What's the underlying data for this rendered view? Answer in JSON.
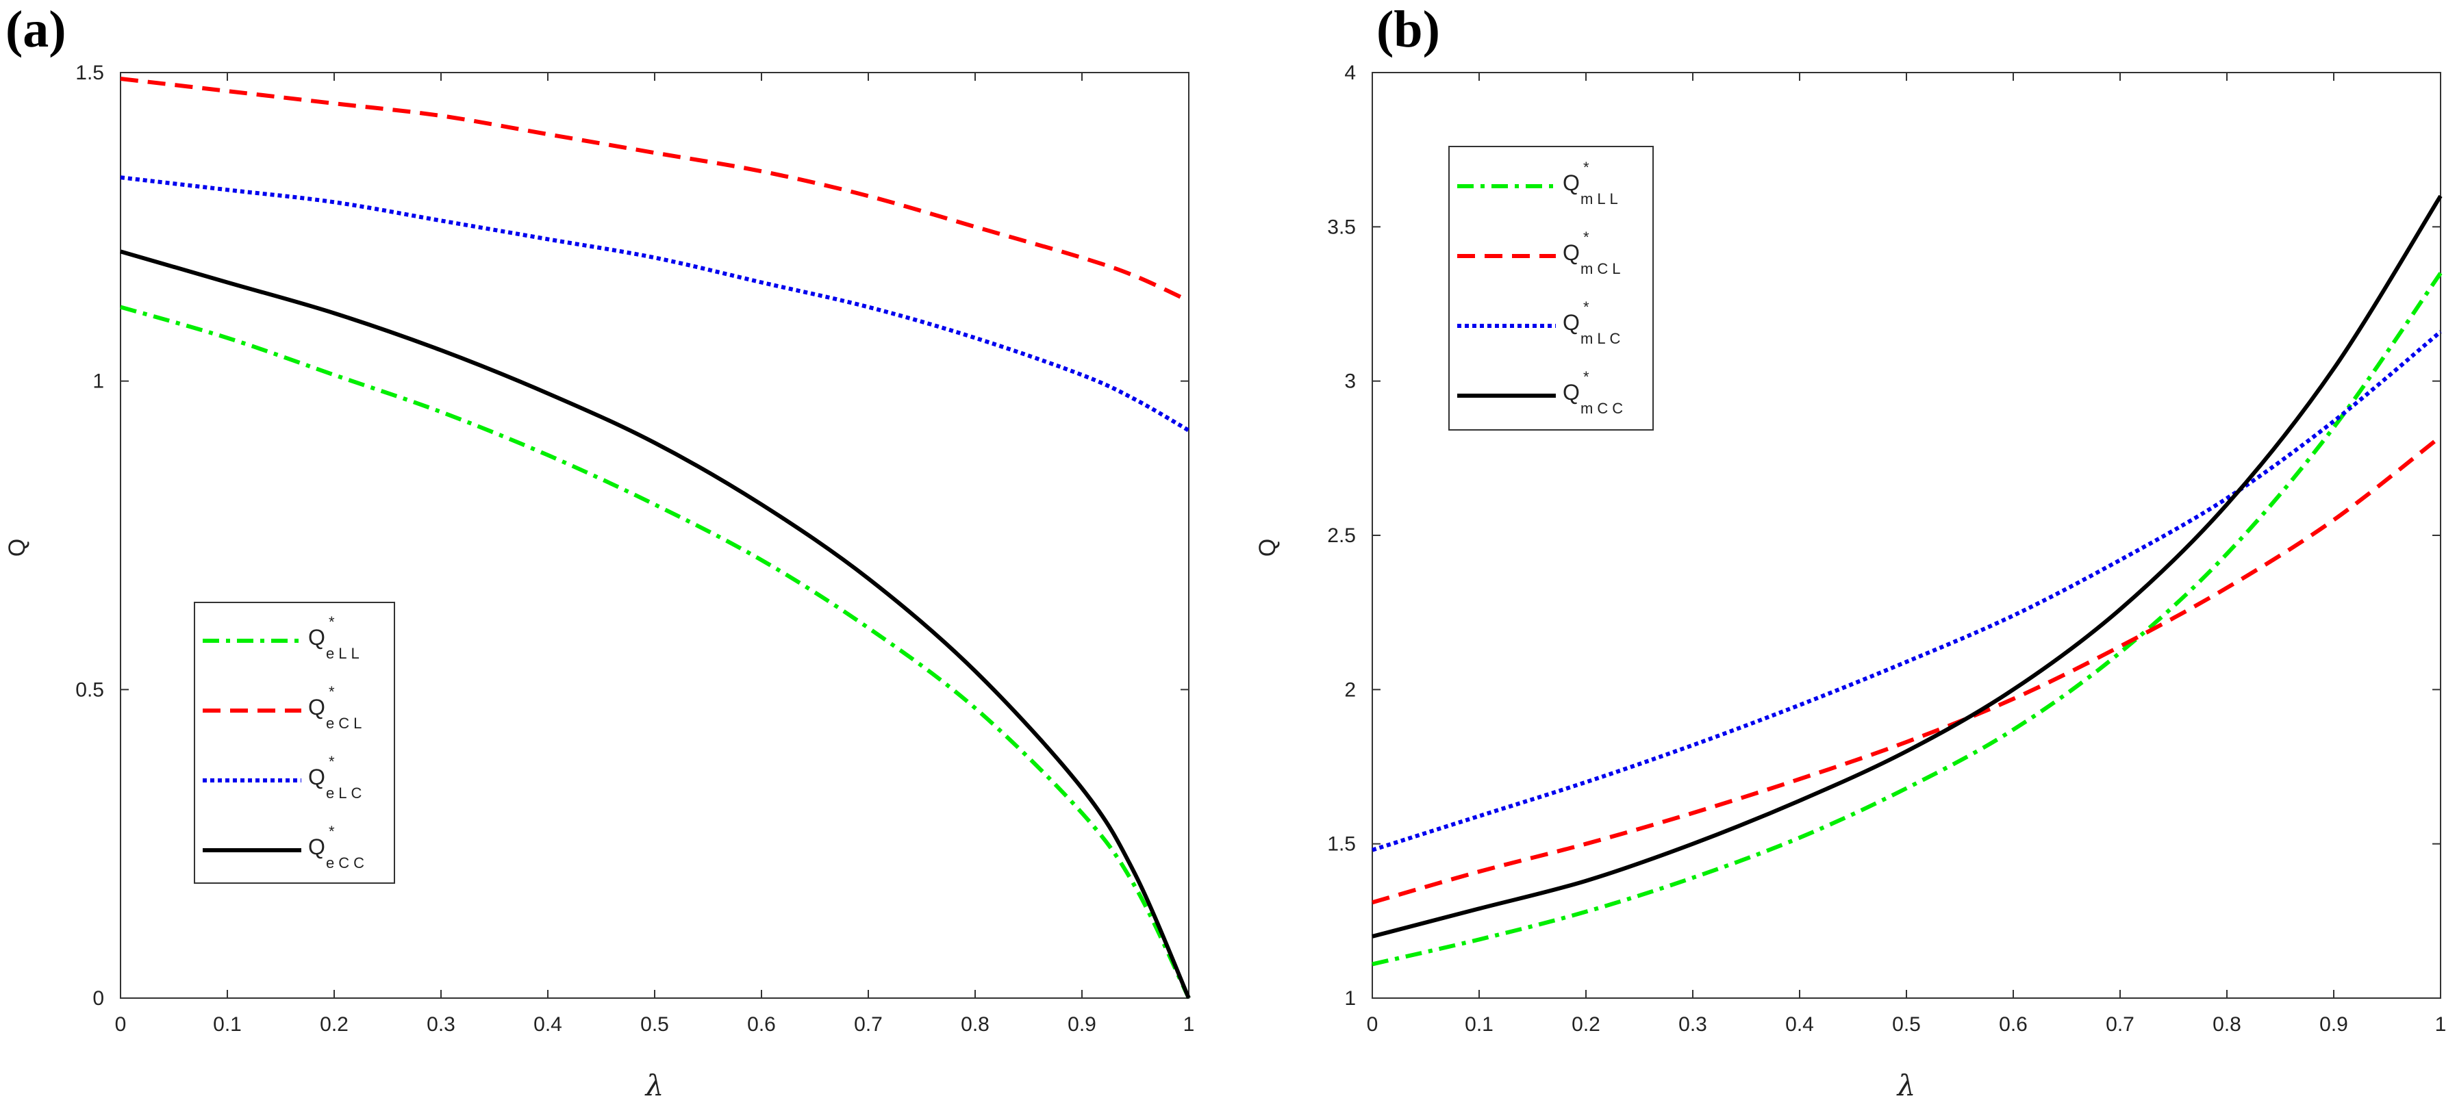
{
  "chart_data": [
    {
      "type": "line",
      "panel_label": "(a)",
      "xlabel": "λ",
      "ylabel": "Q",
      "xlim": [
        0,
        1
      ],
      "ylim": [
        0,
        1.5
      ],
      "xticks": [
        "0",
        "0.1",
        "0.2",
        "0.3",
        "0.4",
        "0.5",
        "0.6",
        "0.7",
        "0.8",
        "0.9",
        "1"
      ],
      "yticks": [
        "0",
        "0.5",
        "1",
        "1.5"
      ],
      "legend_position": "bottom-left",
      "x": [
        0,
        0.1,
        0.2,
        0.3,
        0.4,
        0.5,
        0.6,
        0.7,
        0.8,
        0.9,
        0.95,
        1.0
      ],
      "series": [
        {
          "name": "Q",
          "sup": "*",
          "sub": "eLL",
          "color": "#00ee00",
          "style": "dashdot",
          "values": [
            1.12,
            1.07,
            1.01,
            0.95,
            0.88,
            0.8,
            0.71,
            0.6,
            0.47,
            0.3,
            0.18,
            0.0
          ]
        },
        {
          "name": "Q",
          "sup": "*",
          "sub": "eCL",
          "color": "#ff0000",
          "style": "dashed",
          "values": [
            1.49,
            1.47,
            1.45,
            1.43,
            1.4,
            1.37,
            1.34,
            1.3,
            1.25,
            1.2,
            1.17,
            1.13
          ]
        },
        {
          "name": "Q",
          "sup": "*",
          "sub": "eLC",
          "color": "#0000ee",
          "style": "dotted",
          "values": [
            1.33,
            1.31,
            1.29,
            1.26,
            1.23,
            1.2,
            1.16,
            1.12,
            1.07,
            1.01,
            0.97,
            0.92
          ]
        },
        {
          "name": "Q",
          "sup": "*",
          "sub": "eCC",
          "color": "#000000",
          "style": "solid",
          "values": [
            1.21,
            1.16,
            1.11,
            1.05,
            0.98,
            0.9,
            0.8,
            0.68,
            0.53,
            0.34,
            0.2,
            0.0
          ]
        }
      ]
    },
    {
      "type": "line",
      "panel_label": "(b)",
      "xlabel": "λ",
      "ylabel": "Q",
      "xlim": [
        0,
        1
      ],
      "ylim": [
        1,
        4
      ],
      "xticks": [
        "0",
        "0.1",
        "0.2",
        "0.3",
        "0.4",
        "0.5",
        "0.6",
        "0.7",
        "0.8",
        "0.9",
        "1"
      ],
      "yticks": [
        "1",
        "1.5",
        "2",
        "2.5",
        "3",
        "3.5",
        "4"
      ],
      "legend_position": "top-left",
      "x": [
        0,
        0.1,
        0.2,
        0.3,
        0.4,
        0.5,
        0.6,
        0.7,
        0.8,
        0.9,
        1.0
      ],
      "series": [
        {
          "name": "Q",
          "sup": "*",
          "sub": "mLL",
          "color": "#00ee00",
          "style": "dashdot",
          "values": [
            1.11,
            1.19,
            1.28,
            1.39,
            1.52,
            1.68,
            1.87,
            2.12,
            2.44,
            2.85,
            3.35
          ]
        },
        {
          "name": "Q",
          "sup": "*",
          "sub": "mCL",
          "color": "#ff0000",
          "style": "dashed",
          "values": [
            1.31,
            1.41,
            1.5,
            1.6,
            1.71,
            1.83,
            1.97,
            2.14,
            2.33,
            2.55,
            2.82
          ]
        },
        {
          "name": "Q",
          "sup": "*",
          "sub": "mLC",
          "color": "#0000ee",
          "style": "dotted",
          "values": [
            1.48,
            1.59,
            1.7,
            1.82,
            1.95,
            2.09,
            2.24,
            2.42,
            2.62,
            2.87,
            3.16
          ]
        },
        {
          "name": "Q",
          "sup": "*",
          "sub": "mCC",
          "color": "#000000",
          "style": "solid",
          "values": [
            1.2,
            1.29,
            1.38,
            1.5,
            1.64,
            1.8,
            2.0,
            2.26,
            2.6,
            3.04,
            3.6
          ]
        }
      ]
    }
  ]
}
